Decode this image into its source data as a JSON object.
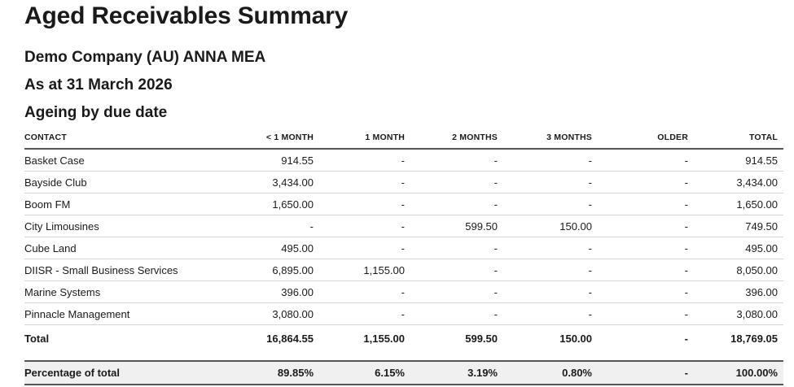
{
  "report": {
    "title": "Aged Receivables Summary",
    "company": "Demo Company (AU) ANNA MEA",
    "as_at": "As at 31 March 2026",
    "ageing_basis": "Ageing by due date",
    "colors": {
      "text": "#1a1a1a",
      "row_divider": "#d4d4d4",
      "strong_border": "#555555",
      "percentage_bg": "#f0f0f0",
      "page_bg": "#ffffff"
    },
    "table": {
      "columns": [
        "CONTACT",
        "< 1 MONTH",
        "1 MONTH",
        "2 MONTHS",
        "3 MONTHS",
        "OLDER",
        "TOTAL"
      ],
      "rows": [
        {
          "contact": "Basket Case",
          "values": [
            "914.55",
            "-",
            "-",
            "-",
            "-",
            "914.55"
          ]
        },
        {
          "contact": "Bayside Club",
          "values": [
            "3,434.00",
            "-",
            "-",
            "-",
            "-",
            "3,434.00"
          ]
        },
        {
          "contact": "Boom FM",
          "values": [
            "1,650.00",
            "-",
            "-",
            "-",
            "-",
            "1,650.00"
          ]
        },
        {
          "contact": "City Limousines",
          "values": [
            "-",
            "-",
            "599.50",
            "150.00",
            "-",
            "749.50"
          ]
        },
        {
          "contact": "Cube Land",
          "values": [
            "495.00",
            "-",
            "-",
            "-",
            "-",
            "495.00"
          ]
        },
        {
          "contact": "DIISR - Small Business Services",
          "values": [
            "6,895.00",
            "1,155.00",
            "-",
            "-",
            "-",
            "8,050.00"
          ]
        },
        {
          "contact": "Marine Systems",
          "values": [
            "396.00",
            "-",
            "-",
            "-",
            "-",
            "396.00"
          ]
        },
        {
          "contact": "Pinnacle Management",
          "values": [
            "3,080.00",
            "-",
            "-",
            "-",
            "-",
            "3,080.00"
          ]
        }
      ],
      "total_row": {
        "label": "Total",
        "values": [
          "16,864.55",
          "1,155.00",
          "599.50",
          "150.00",
          "-",
          "18,769.05"
        ]
      },
      "percentage_row": {
        "label": "Percentage of total",
        "values": [
          "89.85%",
          "6.15%",
          "3.19%",
          "0.80%",
          "-",
          "100.00%"
        ]
      }
    }
  }
}
